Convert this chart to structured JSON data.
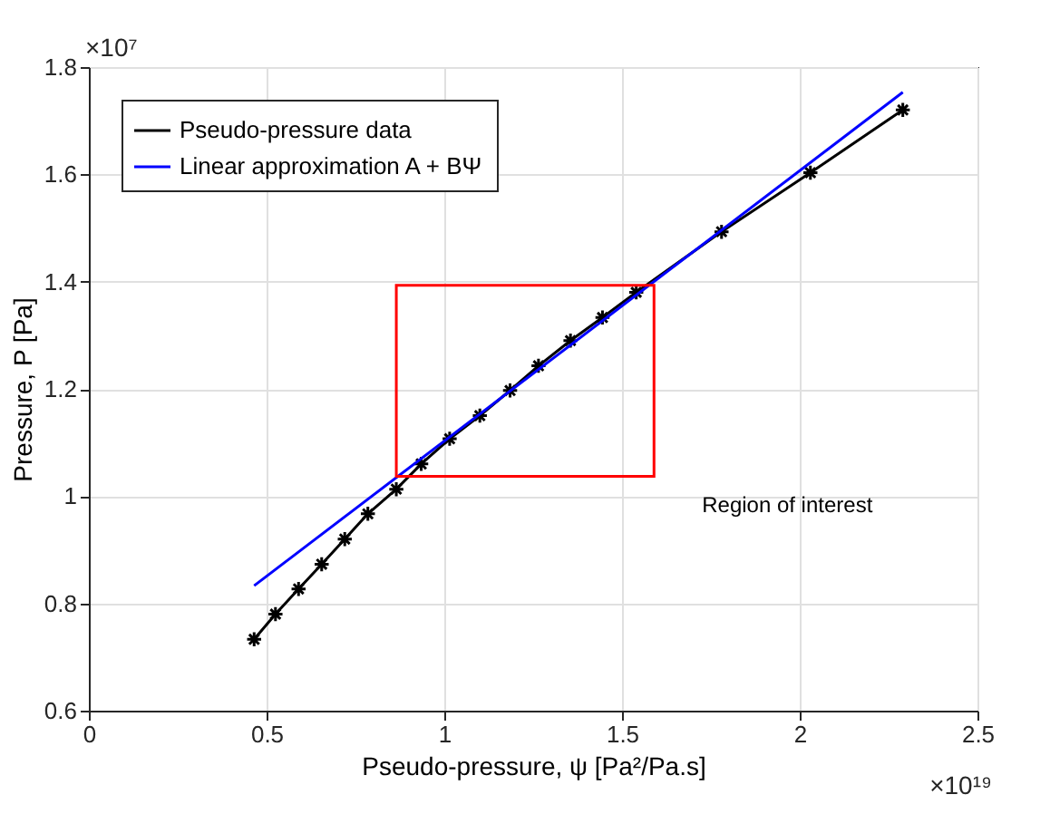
{
  "chart_data": {
    "type": "line",
    "xlabel": "Pseudo-pressure, ψ [Pa²/Pa.s]",
    "ylabel": "Pressure, P [Pa]",
    "xlim": [
      0,
      2.5
    ],
    "xticks": [
      0,
      0.5,
      1,
      1.5,
      2,
      2.5
    ],
    "ylim": [
      0.6,
      1.8
    ],
    "yticks": [
      0.6,
      0.8,
      1,
      1.2,
      1.4,
      1.6,
      1.8
    ],
    "grid": true,
    "legend": "top left",
    "series": [
      {
        "name": "Pseudo-pressure data",
        "color": "#000000",
        "marker": "cross",
        "x": [
          0.465,
          0.525,
          0.59,
          0.655,
          0.72,
          0.785,
          0.865,
          0.935,
          1.015,
          1.1,
          1.185,
          1.265,
          1.355,
          1.445,
          1.54,
          1.78,
          2.03,
          2.29
        ],
        "values": [
          0.733,
          0.78,
          0.827,
          0.873,
          0.92,
          0.967,
          1.013,
          1.06,
          1.107,
          1.15,
          1.197,
          1.243,
          1.29,
          1.333,
          1.38,
          1.493,
          1.603,
          1.72
        ]
      },
      {
        "name": "Linear approximation A + BΨ",
        "color": "#0000ff",
        "marker": "none",
        "x": [
          0.465,
          2.29
        ],
        "values": [
          0.833,
          1.753
        ]
      }
    ],
    "annotations": [
      "×10⁷",
      "×10¹⁹",
      "Region of interest"
    ]
  }
}
